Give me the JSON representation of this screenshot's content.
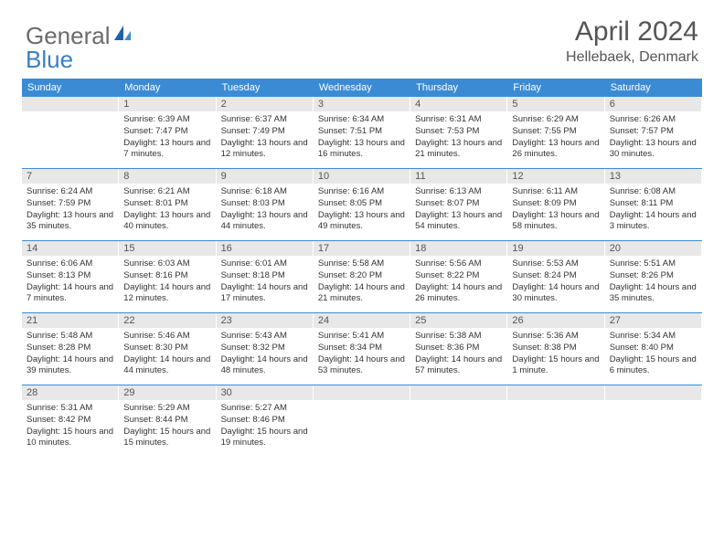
{
  "logo": {
    "general": "General",
    "blue": "Blue"
  },
  "title": "April 2024",
  "location": "Hellebaek, Denmark",
  "colors": {
    "header_bg": "#3b8bd4",
    "header_text": "#ffffff",
    "date_bg": "#e8e8e8",
    "date_text": "#555555",
    "body_text": "#333333",
    "rule": "#3b8bd4",
    "logo_general": "#6b6b6b",
    "logo_blue": "#3b7fc4"
  },
  "day_headers": [
    "Sunday",
    "Monday",
    "Tuesday",
    "Wednesday",
    "Thursday",
    "Friday",
    "Saturday"
  ],
  "weeks": [
    [
      {
        "date": "",
        "sunrise": "",
        "sunset": "",
        "daylight": ""
      },
      {
        "date": "1",
        "sunrise": "Sunrise: 6:39 AM",
        "sunset": "Sunset: 7:47 PM",
        "daylight": "Daylight: 13 hours and 7 minutes."
      },
      {
        "date": "2",
        "sunrise": "Sunrise: 6:37 AM",
        "sunset": "Sunset: 7:49 PM",
        "daylight": "Daylight: 13 hours and 12 minutes."
      },
      {
        "date": "3",
        "sunrise": "Sunrise: 6:34 AM",
        "sunset": "Sunset: 7:51 PM",
        "daylight": "Daylight: 13 hours and 16 minutes."
      },
      {
        "date": "4",
        "sunrise": "Sunrise: 6:31 AM",
        "sunset": "Sunset: 7:53 PM",
        "daylight": "Daylight: 13 hours and 21 minutes."
      },
      {
        "date": "5",
        "sunrise": "Sunrise: 6:29 AM",
        "sunset": "Sunset: 7:55 PM",
        "daylight": "Daylight: 13 hours and 26 minutes."
      },
      {
        "date": "6",
        "sunrise": "Sunrise: 6:26 AM",
        "sunset": "Sunset: 7:57 PM",
        "daylight": "Daylight: 13 hours and 30 minutes."
      }
    ],
    [
      {
        "date": "7",
        "sunrise": "Sunrise: 6:24 AM",
        "sunset": "Sunset: 7:59 PM",
        "daylight": "Daylight: 13 hours and 35 minutes."
      },
      {
        "date": "8",
        "sunrise": "Sunrise: 6:21 AM",
        "sunset": "Sunset: 8:01 PM",
        "daylight": "Daylight: 13 hours and 40 minutes."
      },
      {
        "date": "9",
        "sunrise": "Sunrise: 6:18 AM",
        "sunset": "Sunset: 8:03 PM",
        "daylight": "Daylight: 13 hours and 44 minutes."
      },
      {
        "date": "10",
        "sunrise": "Sunrise: 6:16 AM",
        "sunset": "Sunset: 8:05 PM",
        "daylight": "Daylight: 13 hours and 49 minutes."
      },
      {
        "date": "11",
        "sunrise": "Sunrise: 6:13 AM",
        "sunset": "Sunset: 8:07 PM",
        "daylight": "Daylight: 13 hours and 54 minutes."
      },
      {
        "date": "12",
        "sunrise": "Sunrise: 6:11 AM",
        "sunset": "Sunset: 8:09 PM",
        "daylight": "Daylight: 13 hours and 58 minutes."
      },
      {
        "date": "13",
        "sunrise": "Sunrise: 6:08 AM",
        "sunset": "Sunset: 8:11 PM",
        "daylight": "Daylight: 14 hours and 3 minutes."
      }
    ],
    [
      {
        "date": "14",
        "sunrise": "Sunrise: 6:06 AM",
        "sunset": "Sunset: 8:13 PM",
        "daylight": "Daylight: 14 hours and 7 minutes."
      },
      {
        "date": "15",
        "sunrise": "Sunrise: 6:03 AM",
        "sunset": "Sunset: 8:16 PM",
        "daylight": "Daylight: 14 hours and 12 minutes."
      },
      {
        "date": "16",
        "sunrise": "Sunrise: 6:01 AM",
        "sunset": "Sunset: 8:18 PM",
        "daylight": "Daylight: 14 hours and 17 minutes."
      },
      {
        "date": "17",
        "sunrise": "Sunrise: 5:58 AM",
        "sunset": "Sunset: 8:20 PM",
        "daylight": "Daylight: 14 hours and 21 minutes."
      },
      {
        "date": "18",
        "sunrise": "Sunrise: 5:56 AM",
        "sunset": "Sunset: 8:22 PM",
        "daylight": "Daylight: 14 hours and 26 minutes."
      },
      {
        "date": "19",
        "sunrise": "Sunrise: 5:53 AM",
        "sunset": "Sunset: 8:24 PM",
        "daylight": "Daylight: 14 hours and 30 minutes."
      },
      {
        "date": "20",
        "sunrise": "Sunrise: 5:51 AM",
        "sunset": "Sunset: 8:26 PM",
        "daylight": "Daylight: 14 hours and 35 minutes."
      }
    ],
    [
      {
        "date": "21",
        "sunrise": "Sunrise: 5:48 AM",
        "sunset": "Sunset: 8:28 PM",
        "daylight": "Daylight: 14 hours and 39 minutes."
      },
      {
        "date": "22",
        "sunrise": "Sunrise: 5:46 AM",
        "sunset": "Sunset: 8:30 PM",
        "daylight": "Daylight: 14 hours and 44 minutes."
      },
      {
        "date": "23",
        "sunrise": "Sunrise: 5:43 AM",
        "sunset": "Sunset: 8:32 PM",
        "daylight": "Daylight: 14 hours and 48 minutes."
      },
      {
        "date": "24",
        "sunrise": "Sunrise: 5:41 AM",
        "sunset": "Sunset: 8:34 PM",
        "daylight": "Daylight: 14 hours and 53 minutes."
      },
      {
        "date": "25",
        "sunrise": "Sunrise: 5:38 AM",
        "sunset": "Sunset: 8:36 PM",
        "daylight": "Daylight: 14 hours and 57 minutes."
      },
      {
        "date": "26",
        "sunrise": "Sunrise: 5:36 AM",
        "sunset": "Sunset: 8:38 PM",
        "daylight": "Daylight: 15 hours and 1 minute."
      },
      {
        "date": "27",
        "sunrise": "Sunrise: 5:34 AM",
        "sunset": "Sunset: 8:40 PM",
        "daylight": "Daylight: 15 hours and 6 minutes."
      }
    ],
    [
      {
        "date": "28",
        "sunrise": "Sunrise: 5:31 AM",
        "sunset": "Sunset: 8:42 PM",
        "daylight": "Daylight: 15 hours and 10 minutes."
      },
      {
        "date": "29",
        "sunrise": "Sunrise: 5:29 AM",
        "sunset": "Sunset: 8:44 PM",
        "daylight": "Daylight: 15 hours and 15 minutes."
      },
      {
        "date": "30",
        "sunrise": "Sunrise: 5:27 AM",
        "sunset": "Sunset: 8:46 PM",
        "daylight": "Daylight: 15 hours and 19 minutes."
      },
      {
        "date": "",
        "sunrise": "",
        "sunset": "",
        "daylight": ""
      },
      {
        "date": "",
        "sunrise": "",
        "sunset": "",
        "daylight": ""
      },
      {
        "date": "",
        "sunrise": "",
        "sunset": "",
        "daylight": ""
      },
      {
        "date": "",
        "sunrise": "",
        "sunset": "",
        "daylight": ""
      }
    ]
  ]
}
